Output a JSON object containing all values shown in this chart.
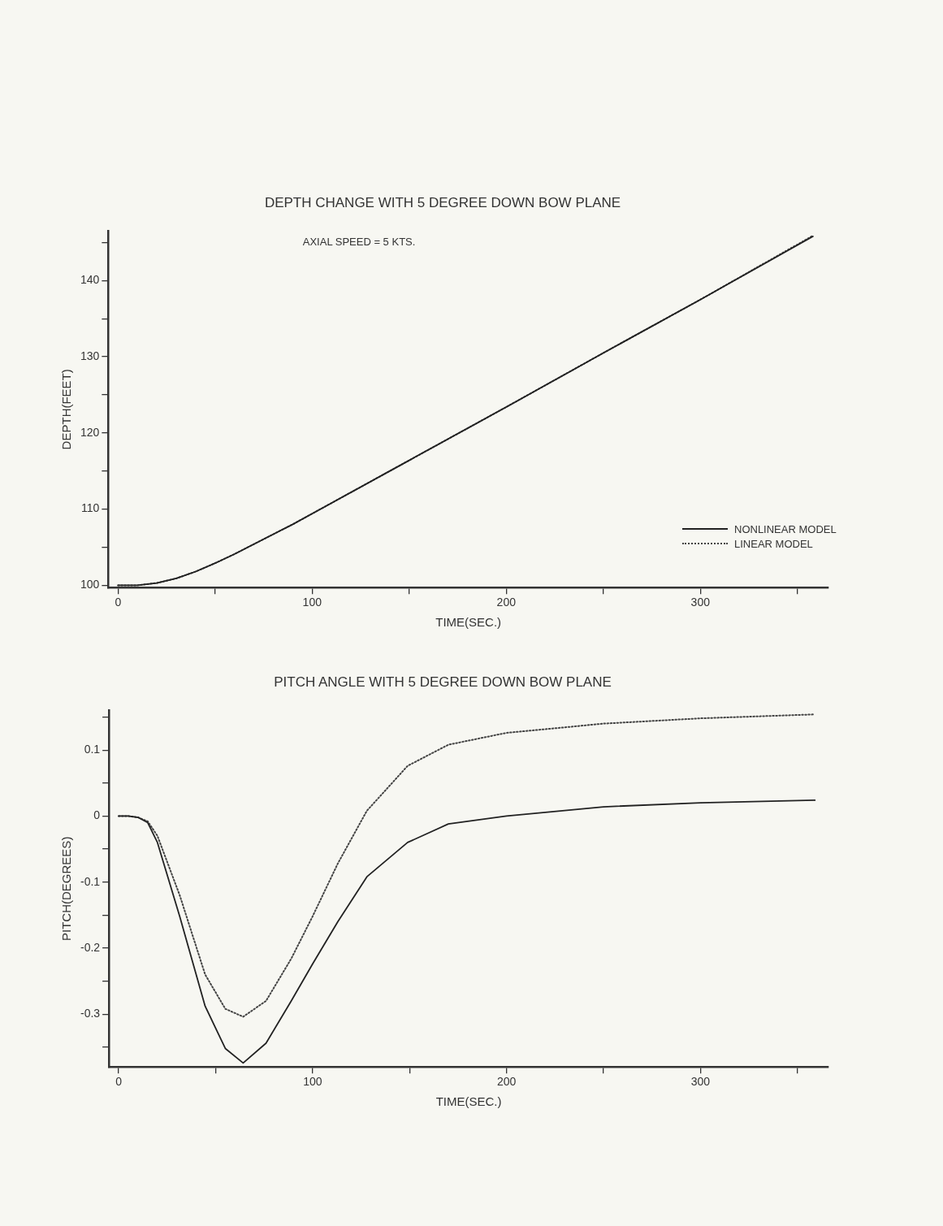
{
  "chart_data": [
    {
      "type": "line",
      "title": "DEPTH CHANGE WITH 5 DEGREE DOWN BOW PLANE",
      "xlabel": "TIME(SEC.)",
      "ylabel": "DEPTH(FEET)",
      "annotations": [
        "AXIAL SPEED = 5 KTS."
      ],
      "x": [
        0,
        10,
        20,
        30,
        40,
        50,
        60,
        70,
        80,
        90,
        100,
        150,
        200,
        250,
        300,
        358
      ],
      "series": [
        {
          "name": "NONLINEAR MODEL",
          "color": "#222222",
          "line_style": "solid",
          "values": [
            100,
            100,
            100.3,
            100.9,
            101.8,
            102.9,
            104.1,
            105.4,
            106.7,
            108.0,
            109.4,
            116.4,
            123.4,
            130.5,
            137.5,
            145.8
          ]
        },
        {
          "name": "LINEAR MODEL",
          "color": "#444444",
          "line_style": "dotted",
          "values": [
            100,
            100,
            100.3,
            100.9,
            101.8,
            102.9,
            104.1,
            105.4,
            106.7,
            108.0,
            109.4,
            116.4,
            123.4,
            130.5,
            137.5,
            145.9
          ]
        }
      ],
      "xlim": [
        -5,
        366
      ],
      "xticks": [
        0,
        {
          "value": 50,
          "label": null
        },
        100,
        {
          "value": 150,
          "label": null
        },
        200,
        {
          "value": 250,
          "label": null
        },
        300,
        {
          "value": 350,
          "label": null
        }
      ],
      "ylim": [
        99.7,
        146.5
      ],
      "yticks": [
        100,
        {
          "value": 105,
          "label": null
        },
        110,
        {
          "value": 115,
          "label": null
        },
        120,
        {
          "value": 125,
          "label": null
        },
        130,
        {
          "value": 135,
          "label": null
        },
        140,
        {
          "value": 145,
          "label": null
        }
      ],
      "legend": "bottom right",
      "marker": "none"
    },
    {
      "type": "line",
      "title": "PITCH ANGLE WITH 5 DEGREE DOWN BOW PLANE",
      "xlabel": "TIME(SEC.)",
      "ylabel": "PITCH(DEGREES)",
      "x": [
        0,
        5,
        10,
        15,
        20,
        31.5,
        44.6,
        55,
        64.2,
        76,
        89,
        100,
        113,
        128,
        149,
        170,
        200,
        250,
        300,
        359
      ],
      "series": [
        {
          "color": "#222222",
          "line_style": "solid",
          "values": [
            0,
            0,
            -0.002,
            -0.01,
            -0.04,
            -0.152,
            -0.288,
            -0.352,
            -0.374,
            -0.344,
            -0.28,
            -0.224,
            -0.16,
            -0.092,
            -0.04,
            -0.012,
            0,
            0.014,
            0.02,
            0.024
          ]
        },
        {
          "color": "#444444",
          "line_style": "dotted",
          "values": [
            0,
            0,
            -0.002,
            -0.008,
            -0.03,
            -0.12,
            -0.24,
            -0.292,
            -0.304,
            -0.28,
            -0.216,
            -0.152,
            -0.072,
            0.008,
            0.076,
            0.108,
            0.126,
            0.14,
            0.148,
            0.154
          ]
        }
      ],
      "xlim": [
        -5,
        366
      ],
      "xticks": [
        0,
        {
          "value": 50,
          "label": null
        },
        100,
        {
          "value": 150,
          "label": null
        },
        200,
        {
          "value": 250,
          "label": null
        },
        300,
        {
          "value": 350,
          "label": null
        }
      ],
      "ylim": [
        -0.38,
        0.16
      ],
      "yticks": [
        {
          "value": -0.35,
          "label": null
        },
        -0.3,
        {
          "value": -0.25,
          "label": null
        },
        -0.2,
        {
          "value": -0.15,
          "label": null
        },
        -0.1,
        {
          "value": -0.05,
          "label": null
        },
        0,
        {
          "value": 0.05,
          "label": null
        },
        0.1,
        {
          "value": 0.15,
          "label": null
        }
      ],
      "marker": "none"
    }
  ]
}
